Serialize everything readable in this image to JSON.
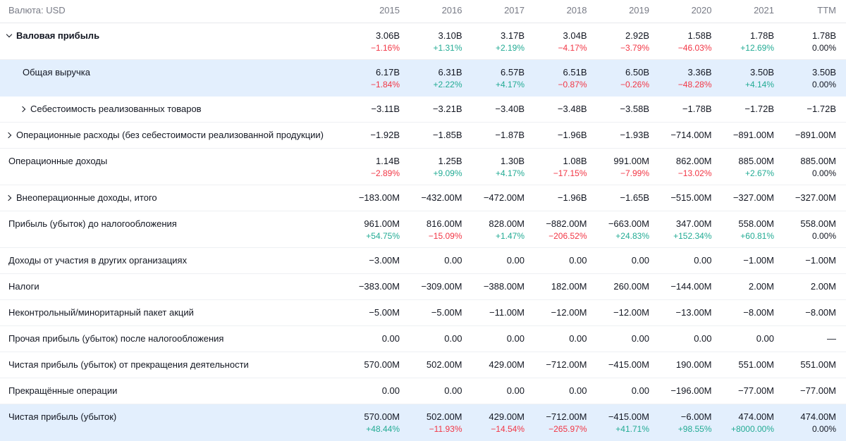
{
  "header": {
    "currency_label": "Валюта: USD",
    "years": [
      "2015",
      "2016",
      "2017",
      "2018",
      "2019",
      "2020",
      "2021",
      "TTM"
    ]
  },
  "rows": [
    {
      "label": "Валовая прибыль",
      "values": [
        "3.06B",
        "3.10B",
        "3.17B",
        "3.04B",
        "2.92B",
        "1.58B",
        "1.78B",
        "1.78B"
      ],
      "changes": [
        "−1.16%",
        "+1.31%",
        "+2.19%",
        "−4.17%",
        "−3.79%",
        "−46.03%",
        "+12.69%",
        "0.00%"
      ]
    },
    {
      "label": "Общая выручка",
      "values": [
        "6.17B",
        "6.31B",
        "6.57B",
        "6.51B",
        "6.50B",
        "3.36B",
        "3.50B",
        "3.50B"
      ],
      "changes": [
        "−1.84%",
        "+2.22%",
        "+4.17%",
        "−0.87%",
        "−0.26%",
        "−48.28%",
        "+4.14%",
        "0.00%"
      ]
    },
    {
      "label": "Себестоимость реализованных товаров",
      "values": [
        "−3.11B",
        "−3.21B",
        "−3.40B",
        "−3.48B",
        "−3.58B",
        "−1.78B",
        "−1.72B",
        "−1.72B"
      ]
    },
    {
      "label": "Операционные расходы (без себестоимости реализованной продукции)",
      "values": [
        "−1.92B",
        "−1.85B",
        "−1.87B",
        "−1.96B",
        "−1.93B",
        "−714.00M",
        "−891.00M",
        "−891.00M"
      ]
    },
    {
      "label": "Операционные доходы",
      "values": [
        "1.14B",
        "1.25B",
        "1.30B",
        "1.08B",
        "991.00M",
        "862.00M",
        "885.00M",
        "885.00M"
      ],
      "changes": [
        "−2.89%",
        "+9.09%",
        "+4.17%",
        "−17.15%",
        "−7.99%",
        "−13.02%",
        "+2.67%",
        "0.00%"
      ]
    },
    {
      "label": "Внеоперационные доходы, итого",
      "values": [
        "−183.00M",
        "−432.00M",
        "−472.00M",
        "−1.96B",
        "−1.65B",
        "−515.00M",
        "−327.00M",
        "−327.00M"
      ]
    },
    {
      "label": "Прибыль (убыток) до налогообложения",
      "values": [
        "961.00M",
        "816.00M",
        "828.00M",
        "−882.00M",
        "−663.00M",
        "347.00M",
        "558.00M",
        "558.00M"
      ],
      "changes": [
        "+54.75%",
        "−15.09%",
        "+1.47%",
        "−206.52%",
        "+24.83%",
        "+152.34%",
        "+60.81%",
        "0.00%"
      ]
    },
    {
      "label": "Доходы от участия в других организациях",
      "values": [
        "−3.00M",
        "0.00",
        "0.00",
        "0.00",
        "0.00",
        "0.00",
        "−1.00M",
        "−1.00M"
      ]
    },
    {
      "label": "Налоги",
      "values": [
        "−383.00M",
        "−309.00M",
        "−388.00M",
        "182.00M",
        "260.00M",
        "−144.00M",
        "2.00M",
        "2.00M"
      ]
    },
    {
      "label": "Неконтрольный/миноритарный пакет акций",
      "values": [
        "−5.00M",
        "−5.00M",
        "−11.00M",
        "−12.00M",
        "−12.00M",
        "−13.00M",
        "−8.00M",
        "−8.00M"
      ]
    },
    {
      "label": "Прочая прибыль (убыток) после налогообложения",
      "values": [
        "0.00",
        "0.00",
        "0.00",
        "0.00",
        "0.00",
        "0.00",
        "0.00",
        "—"
      ]
    },
    {
      "label": "Чистая прибыль (убыток) от прекращения деятельности",
      "values": [
        "570.00M",
        "502.00M",
        "429.00M",
        "−712.00M",
        "−415.00M",
        "190.00M",
        "551.00M",
        "551.00M"
      ]
    },
    {
      "label": "Прекращённые операции",
      "values": [
        "0.00",
        "0.00",
        "0.00",
        "0.00",
        "0.00",
        "−196.00M",
        "−77.00M",
        "−77.00M"
      ]
    },
    {
      "label": "Чистая прибыль (убыток)",
      "values": [
        "570.00M",
        "502.00M",
        "429.00M",
        "−712.00M",
        "−415.00M",
        "−6.00M",
        "474.00M",
        "474.00M"
      ],
      "changes": [
        "+48.44%",
        "−11.93%",
        "−14.54%",
        "−265.97%",
        "+41.71%",
        "+98.55%",
        "+8000.00%",
        "0.00%"
      ]
    }
  ]
}
